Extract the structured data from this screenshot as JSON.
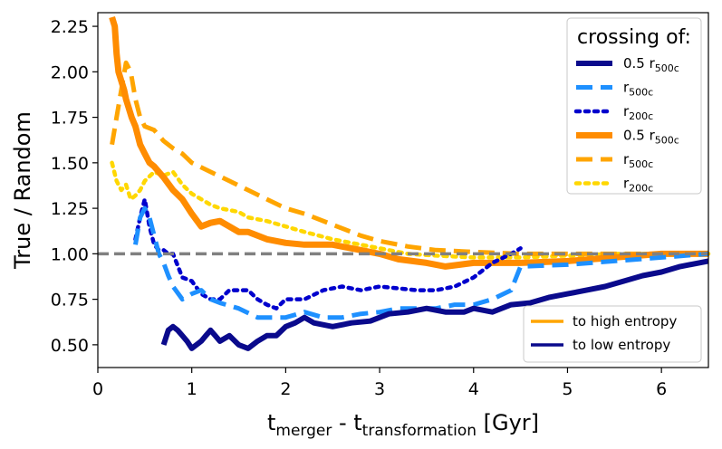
{
  "chart_data": {
    "type": "line",
    "xlabel": {
      "main": "t",
      "sub1": "merger",
      "mid": " - t",
      "sub2": "transformation",
      "unit": " [Gyr]"
    },
    "ylabel": "True / Random",
    "xlim": [
      0,
      6.5
    ],
    "ylim": [
      0.375,
      2.325
    ],
    "xticks": [
      "0",
      "1",
      "2",
      "3",
      "4",
      "5",
      "6"
    ],
    "yticks": [
      "0.50",
      "0.75",
      "1.00",
      "1.25",
      "1.50",
      "1.75",
      "2.00",
      "2.25"
    ],
    "reference_line": {
      "y": 1.0,
      "color": "#808080",
      "style": "dashed"
    },
    "legend_crossing": {
      "title": "crossing of:",
      "entries": [
        {
          "pre": "0.5 ",
          "r": "r",
          "sub": "500c"
        },
        {
          "pre": "",
          "r": "r",
          "sub": "500c"
        },
        {
          "pre": "",
          "r": "r",
          "sub": "200c"
        },
        {
          "pre": "0.5 ",
          "r": "r",
          "sub": "500c"
        },
        {
          "pre": "",
          "r": "r",
          "sub": "500c"
        },
        {
          "pre": "",
          "r": "r",
          "sub": "200c"
        }
      ]
    },
    "legend_entropy": {
      "entries": [
        {
          "label": "to high entropy",
          "color": "#ffa500"
        },
        {
          "label": "to low entropy",
          "color": "#0a0a8c"
        }
      ]
    },
    "series": [
      {
        "color": "#ffd700",
        "style": "dotted",
        "width": 4.5,
        "x": [
          0.15,
          0.2,
          0.25,
          0.3,
          0.35,
          0.4,
          0.45,
          0.5,
          0.6,
          0.7,
          0.8,
          0.9,
          1.0,
          1.1,
          1.2,
          1.3,
          1.4,
          1.5,
          1.6,
          1.8,
          2.0,
          2.2,
          2.5,
          2.8,
          3.0,
          3.3,
          3.6,
          4.0,
          4.5,
          5.0,
          5.5,
          6.0,
          6.5
        ],
        "y": [
          1.5,
          1.4,
          1.35,
          1.38,
          1.3,
          1.32,
          1.35,
          1.4,
          1.45,
          1.43,
          1.45,
          1.38,
          1.33,
          1.3,
          1.27,
          1.25,
          1.24,
          1.23,
          1.2,
          1.18,
          1.15,
          1.12,
          1.08,
          1.05,
          1.03,
          1.0,
          0.99,
          0.98,
          0.98,
          0.99,
          1.0,
          1.0,
          1.0
        ]
      },
      {
        "color": "#ffa500",
        "style": "dashed",
        "width": 5,
        "x": [
          0.15,
          0.2,
          0.25,
          0.3,
          0.35,
          0.4,
          0.45,
          0.5,
          0.6,
          0.7,
          0.8,
          0.9,
          1.0,
          1.2,
          1.4,
          1.6,
          1.8,
          2.0,
          2.2,
          2.5,
          2.8,
          3.0,
          3.3,
          3.6,
          4.0,
          4.5,
          5.0,
          5.5,
          6.0,
          6.5
        ],
        "y": [
          1.6,
          1.75,
          1.9,
          2.05,
          2.0,
          1.85,
          1.75,
          1.7,
          1.68,
          1.62,
          1.58,
          1.55,
          1.5,
          1.45,
          1.4,
          1.35,
          1.3,
          1.25,
          1.22,
          1.16,
          1.1,
          1.07,
          1.04,
          1.02,
          1.01,
          1.0,
          1.0,
          1.0,
          1.0,
          1.0
        ]
      },
      {
        "color": "#ff8c00",
        "style": "solid",
        "width": 7,
        "x": [
          0.15,
          0.18,
          0.2,
          0.22,
          0.25,
          0.28,
          0.3,
          0.33,
          0.36,
          0.4,
          0.45,
          0.5,
          0.55,
          0.6,
          0.7,
          0.8,
          0.9,
          1.0,
          1.1,
          1.2,
          1.3,
          1.4,
          1.5,
          1.6,
          1.8,
          2.0,
          2.2,
          2.5,
          2.8,
          3.0,
          3.2,
          3.5,
          3.7,
          4.0,
          4.5,
          5.0,
          5.5,
          6.0,
          6.5
        ],
        "y": [
          2.3,
          2.25,
          2.1,
          2.0,
          1.95,
          1.9,
          1.85,
          1.8,
          1.75,
          1.7,
          1.6,
          1.55,
          1.5,
          1.48,
          1.42,
          1.35,
          1.3,
          1.22,
          1.15,
          1.17,
          1.18,
          1.15,
          1.12,
          1.12,
          1.08,
          1.06,
          1.05,
          1.05,
          1.02,
          1.0,
          0.97,
          0.95,
          0.93,
          0.95,
          0.95,
          0.96,
          0.98,
          1.0,
          1.0
        ]
      },
      {
        "color": "#0000cd",
        "style": "dotted",
        "width": 4.5,
        "x": [
          0.4,
          0.45,
          0.5,
          0.55,
          0.6,
          0.65,
          0.7,
          0.75,
          0.8,
          0.9,
          1.0,
          1.1,
          1.2,
          1.3,
          1.4,
          1.5,
          1.6,
          1.7,
          1.8,
          1.9,
          2.0,
          2.2,
          2.4,
          2.6,
          2.8,
          3.0,
          3.2,
          3.4,
          3.6,
          3.8,
          4.0,
          4.2,
          4.4,
          4.5
        ],
        "y": [
          1.08,
          1.2,
          1.3,
          1.15,
          1.05,
          1.02,
          1.02,
          1.0,
          1.0,
          0.87,
          0.85,
          0.78,
          0.75,
          0.75,
          0.8,
          0.8,
          0.8,
          0.75,
          0.72,
          0.7,
          0.75,
          0.75,
          0.8,
          0.82,
          0.8,
          0.82,
          0.81,
          0.8,
          0.8,
          0.82,
          0.87,
          0.95,
          1.0,
          1.03
        ]
      },
      {
        "color": "#1e90ff",
        "style": "dashed",
        "width": 5,
        "x": [
          0.4,
          0.45,
          0.5,
          0.55,
          0.6,
          0.65,
          0.7,
          0.75,
          0.8,
          0.9,
          1.0,
          1.1,
          1.2,
          1.3,
          1.5,
          1.7,
          1.9,
          2.0,
          2.2,
          2.4,
          2.6,
          2.8,
          3.0,
          3.2,
          3.4,
          3.6,
          3.8,
          4.0,
          4.2,
          4.4,
          4.5,
          5.0,
          5.5,
          6.0,
          6.5
        ],
        "y": [
          1.05,
          1.2,
          1.25,
          1.2,
          1.1,
          1.0,
          0.95,
          0.88,
          0.82,
          0.75,
          0.78,
          0.8,
          0.75,
          0.73,
          0.7,
          0.65,
          0.65,
          0.65,
          0.68,
          0.65,
          0.65,
          0.67,
          0.68,
          0.7,
          0.7,
          0.7,
          0.72,
          0.72,
          0.75,
          0.8,
          0.93,
          0.94,
          0.96,
          0.98,
          1.0
        ]
      },
      {
        "color": "#0a0a8c",
        "style": "solid",
        "width": 6,
        "x": [
          0.7,
          0.75,
          0.8,
          0.85,
          0.9,
          0.95,
          1.0,
          1.05,
          1.1,
          1.15,
          1.2,
          1.25,
          1.3,
          1.4,
          1.5,
          1.6,
          1.7,
          1.8,
          1.9,
          2.0,
          2.1,
          2.2,
          2.3,
          2.5,
          2.7,
          2.9,
          3.1,
          3.3,
          3.5,
          3.7,
          3.9,
          4.0,
          4.2,
          4.4,
          4.6,
          4.8,
          5.0,
          5.2,
          5.4,
          5.6,
          5.8,
          6.0,
          6.2,
          6.5
        ],
        "y": [
          0.5,
          0.58,
          0.6,
          0.58,
          0.55,
          0.52,
          0.48,
          0.5,
          0.52,
          0.55,
          0.58,
          0.55,
          0.52,
          0.55,
          0.5,
          0.48,
          0.52,
          0.55,
          0.55,
          0.6,
          0.62,
          0.65,
          0.62,
          0.6,
          0.62,
          0.63,
          0.67,
          0.68,
          0.7,
          0.68,
          0.68,
          0.7,
          0.68,
          0.72,
          0.73,
          0.76,
          0.78,
          0.8,
          0.82,
          0.85,
          0.88,
          0.9,
          0.93,
          0.96
        ]
      }
    ]
  }
}
